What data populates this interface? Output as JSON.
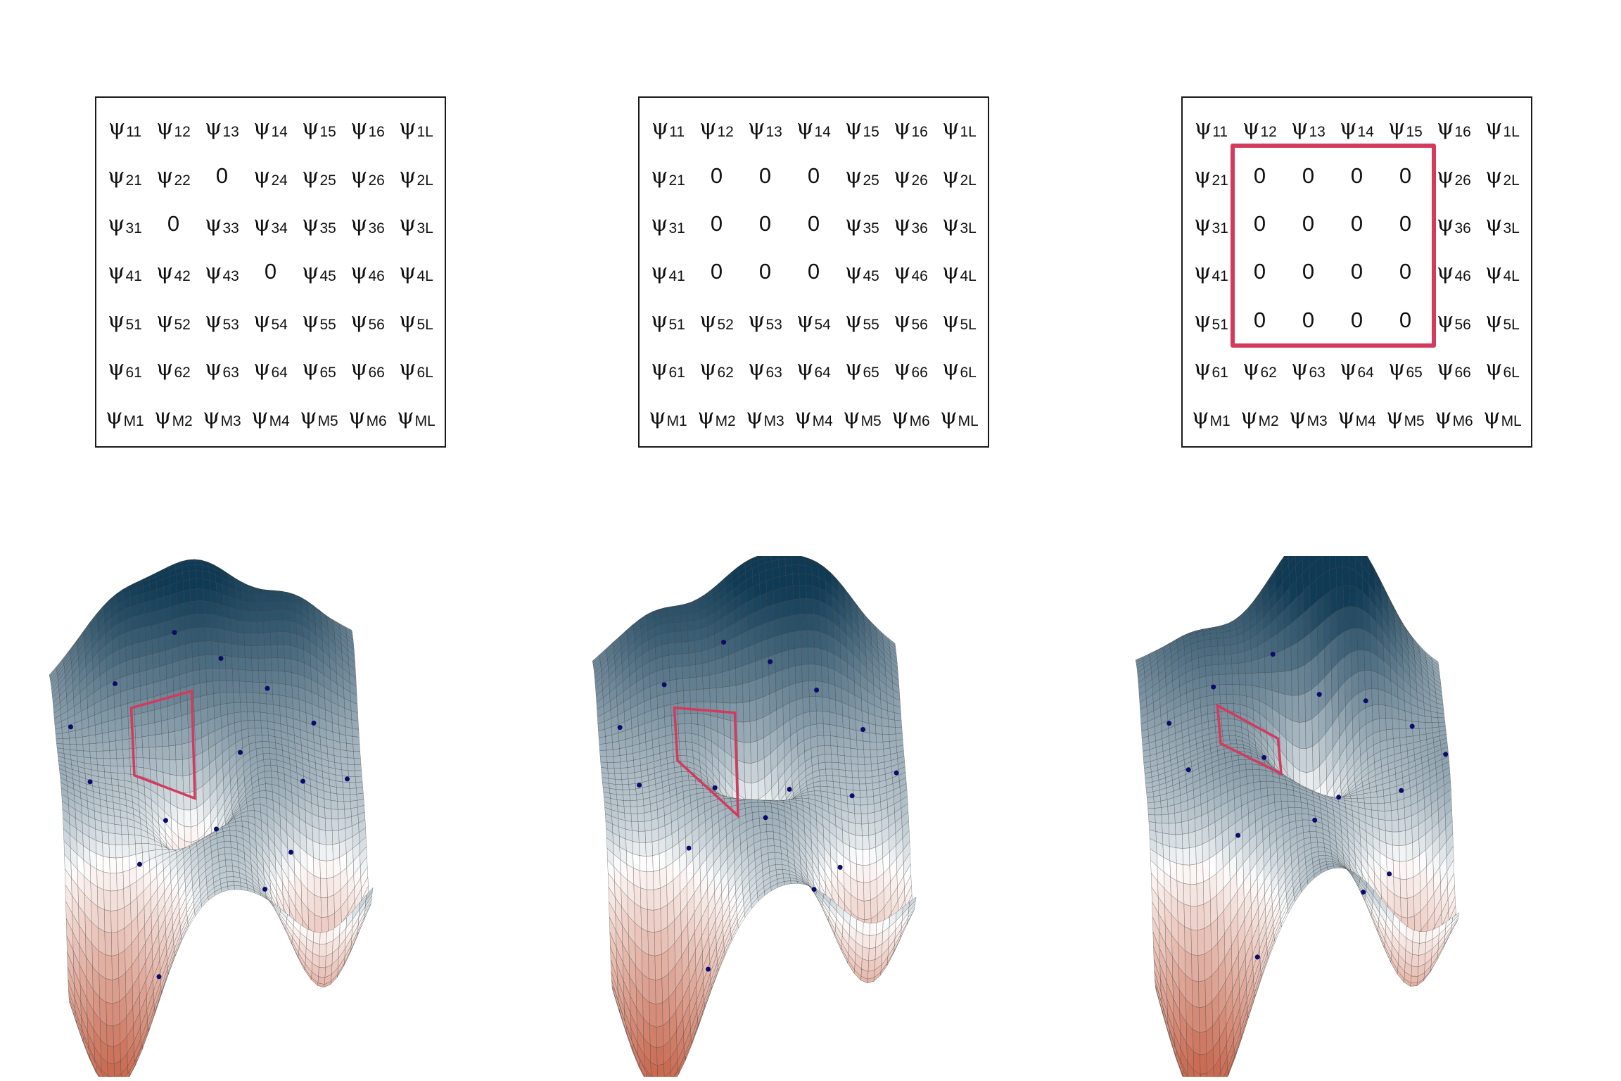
{
  "colors": {
    "border": "#1a1a1a",
    "highlight": "#d33a5e",
    "surface_peak": "#0f3a55",
    "surface_mid": "#ffffff",
    "surface_low": "#c96b52",
    "points": "#0b0b6b"
  },
  "symbol": "ψ",
  "row_indices": [
    "1",
    "2",
    "3",
    "4",
    "5",
    "6",
    "M"
  ],
  "col_indices": [
    "1",
    "2",
    "3",
    "4",
    "5",
    "6",
    "L"
  ],
  "zero_label": "0",
  "matrices": [
    {
      "zeros": [
        [
          1,
          2
        ],
        [
          2,
          1
        ],
        [
          3,
          3
        ]
      ],
      "highlight": false
    },
    {
      "zeros": [
        [
          1,
          1
        ],
        [
          1,
          2
        ],
        [
          1,
          3
        ],
        [
          2,
          1
        ],
        [
          2,
          2
        ],
        [
          2,
          3
        ],
        [
          3,
          1
        ],
        [
          3,
          2
        ],
        [
          3,
          3
        ]
      ],
      "highlight": false
    },
    {
      "zeros": [
        [
          1,
          1
        ],
        [
          1,
          2
        ],
        [
          1,
          3
        ],
        [
          1,
          4
        ],
        [
          2,
          1
        ],
        [
          2,
          2
        ],
        [
          2,
          3
        ],
        [
          2,
          4
        ],
        [
          3,
          1
        ],
        [
          3,
          2
        ],
        [
          3,
          3
        ],
        [
          3,
          4
        ],
        [
          4,
          1
        ],
        [
          4,
          2
        ],
        [
          4,
          3
        ],
        [
          4,
          4
        ]
      ],
      "highlight": true
    }
  ]
}
